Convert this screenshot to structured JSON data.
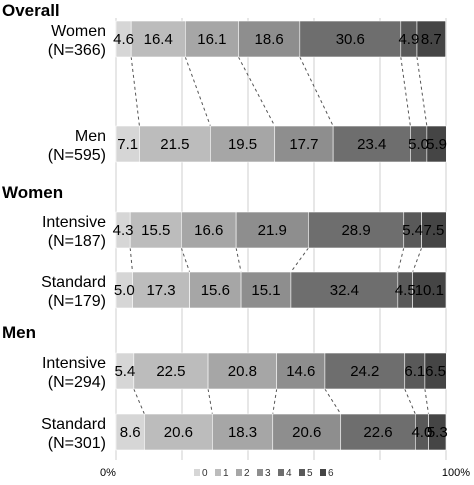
{
  "chart_data": {
    "type": "stacked-bar-100",
    "categories_legend": [
      "0",
      "1",
      "2",
      "3",
      "4",
      "5",
      "6"
    ],
    "colors": [
      "#d6d6d6",
      "#bcbcbc",
      "#a6a6a6",
      "#8e8e8e",
      "#6e6e6e",
      "#595959",
      "#454545"
    ],
    "x_ticks": [
      "0%",
      "100%"
    ],
    "xlim": [
      0,
      100
    ],
    "grid": true,
    "legend_position": "bottom",
    "sections": [
      {
        "title": "Overall",
        "rows": [
          {
            "label_line1": "Women",
            "label_line2": "(N=366)",
            "values": [
              4.6,
              16.4,
              16.1,
              18.6,
              30.6,
              4.9,
              8.7
            ]
          },
          {
            "label_line1": "Men",
            "label_line2": "(N=595)",
            "values": [
              7.1,
              21.5,
              19.5,
              17.7,
              23.4,
              5.0,
              5.9
            ]
          }
        ]
      },
      {
        "title": "Women",
        "rows": [
          {
            "label_line1": "Intensive",
            "label_line2": "(N=187)",
            "values": [
              4.3,
              15.5,
              16.6,
              21.9,
              28.9,
              5.4,
              7.5
            ]
          },
          {
            "label_line1": "Standard",
            "label_line2": "(N=179)",
            "values": [
              5.0,
              17.3,
              15.6,
              15.1,
              32.4,
              4.5,
              10.1
            ]
          }
        ]
      },
      {
        "title": "Men",
        "rows": [
          {
            "label_line1": "Intensive",
            "label_line2": "(N=294)",
            "values": [
              5.4,
              22.5,
              20.8,
              14.6,
              24.2,
              6.1,
              6.5
            ]
          },
          {
            "label_line1": "Standard",
            "label_line2": "(N=301)",
            "values": [
              8.6,
              20.6,
              18.3,
              20.6,
              22.6,
              4.0,
              5.3
            ]
          }
        ]
      }
    ]
  }
}
